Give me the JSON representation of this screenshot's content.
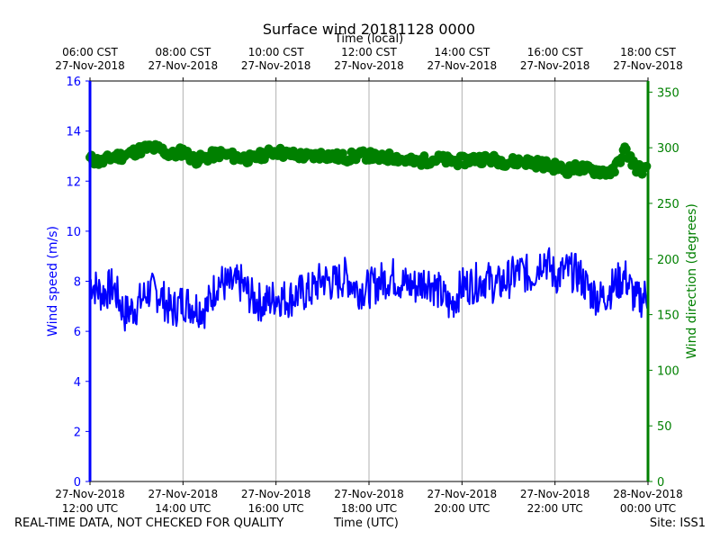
{
  "title": "Surface wind 20181128 0000",
  "top_axis_label": "Time (local)",
  "bottom_axis_label": "Time (UTC)",
  "footer_note": "REAL-TIME DATA, NOT CHECKED FOR QUALITY",
  "site_label": "Site: ISS1",
  "colors": {
    "speed": "#0000ff",
    "direction": "#008000",
    "grid": "#b0b0b0",
    "frame": "#000000"
  },
  "chart_data": {
    "type": "line",
    "title": "Surface wind 20181128 0000",
    "x_range_utc_hours": [
      12,
      24
    ],
    "bottom_ticks": [
      {
        "hour": 12,
        "line1": "27-Nov-2018",
        "line2": "12:00 UTC"
      },
      {
        "hour": 14,
        "line1": "27-Nov-2018",
        "line2": "14:00 UTC"
      },
      {
        "hour": 16,
        "line1": "27-Nov-2018",
        "line2": "16:00 UTC"
      },
      {
        "hour": 18,
        "line1": "27-Nov-2018",
        "line2": "18:00 UTC"
      },
      {
        "hour": 20,
        "line1": "27-Nov-2018",
        "line2": "20:00 UTC"
      },
      {
        "hour": 22,
        "line1": "27-Nov-2018",
        "line2": "22:00 UTC"
      },
      {
        "hour": 24,
        "line1": "28-Nov-2018",
        "line2": "00:00 UTC"
      }
    ],
    "top_ticks": [
      {
        "hour": 12,
        "line1": "06:00 CST",
        "line2": "27-Nov-2018"
      },
      {
        "hour": 14,
        "line1": "08:00 CST",
        "line2": "27-Nov-2018"
      },
      {
        "hour": 16,
        "line1": "10:00 CST",
        "line2": "27-Nov-2018"
      },
      {
        "hour": 18,
        "line1": "12:00 CST",
        "line2": "27-Nov-2018"
      },
      {
        "hour": 20,
        "line1": "14:00 CST",
        "line2": "27-Nov-2018"
      },
      {
        "hour": 22,
        "line1": "16:00 CST",
        "line2": "27-Nov-2018"
      },
      {
        "hour": 24,
        "line1": "18:00 CST",
        "line2": "27-Nov-2018"
      }
    ],
    "left_axis": {
      "label": "Wind speed (m/s)",
      "range": [
        0,
        16
      ],
      "ticks": [
        0,
        2,
        4,
        6,
        8,
        10,
        12,
        14,
        16
      ]
    },
    "right_axis": {
      "label": "Wind direction (degrees)",
      "range": [
        0,
        360
      ],
      "ticks": [
        0,
        50,
        100,
        150,
        200,
        250,
        300,
        350
      ]
    },
    "grid": "vertical",
    "series": [
      {
        "name": "Wind speed",
        "axis": "left",
        "style": "line",
        "x_utc_hours": [
          12.0,
          12.25,
          12.5,
          12.75,
          13.0,
          13.25,
          13.5,
          13.75,
          14.0,
          14.25,
          14.5,
          14.75,
          15.0,
          15.25,
          15.5,
          15.75,
          16.0,
          16.25,
          16.5,
          16.75,
          17.0,
          17.25,
          17.5,
          17.75,
          18.0,
          18.25,
          18.5,
          18.75,
          19.0,
          19.25,
          19.5,
          19.75,
          20.0,
          20.25,
          20.5,
          20.75,
          21.0,
          21.25,
          21.5,
          21.75,
          22.0,
          22.25,
          22.5,
          22.75,
          23.0,
          23.25,
          23.5,
          23.75,
          24.0
        ],
        "values": [
          8.0,
          7.5,
          7.8,
          6.7,
          7.0,
          7.6,
          7.5,
          6.8,
          7.2,
          7.0,
          6.9,
          8.0,
          7.8,
          7.9,
          7.3,
          7.1,
          7.4,
          7.3,
          7.5,
          7.6,
          8.1,
          7.9,
          8.2,
          7.7,
          7.7,
          8.0,
          8.2,
          7.9,
          7.8,
          8.1,
          7.6,
          7.0,
          7.8,
          7.9,
          8.1,
          7.8,
          8.1,
          8.4,
          8.2,
          9.0,
          8.2,
          8.4,
          8.3,
          7.6,
          7.3,
          7.8,
          8.2,
          7.2,
          7.5
        ]
      },
      {
        "name": "Wind direction",
        "axis": "right",
        "style": "markers",
        "x_utc_hours": [
          12.0,
          12.25,
          12.5,
          12.75,
          13.0,
          13.25,
          13.5,
          13.75,
          14.0,
          14.25,
          14.5,
          14.75,
          15.0,
          15.25,
          15.5,
          15.75,
          16.0,
          16.25,
          16.5,
          16.75,
          17.0,
          17.25,
          17.5,
          17.75,
          18.0,
          18.25,
          18.5,
          18.75,
          19.0,
          19.25,
          19.5,
          19.75,
          20.0,
          20.25,
          20.5,
          20.75,
          21.0,
          21.25,
          21.5,
          21.75,
          22.0,
          22.25,
          22.5,
          22.75,
          23.0,
          23.25,
          23.5,
          23.75,
          24.0
        ],
        "values": [
          290,
          287,
          292,
          293,
          297,
          300,
          299,
          293,
          297,
          289,
          291,
          295,
          293,
          291,
          290,
          294,
          297,
          294,
          293,
          292,
          294,
          292,
          291,
          293,
          293,
          290,
          292,
          289,
          287,
          289,
          290,
          288,
          288,
          290,
          290,
          289,
          287,
          288,
          287,
          285,
          283,
          280,
          282,
          280,
          279,
          278,
          298,
          282,
          279
        ]
      }
    ]
  }
}
